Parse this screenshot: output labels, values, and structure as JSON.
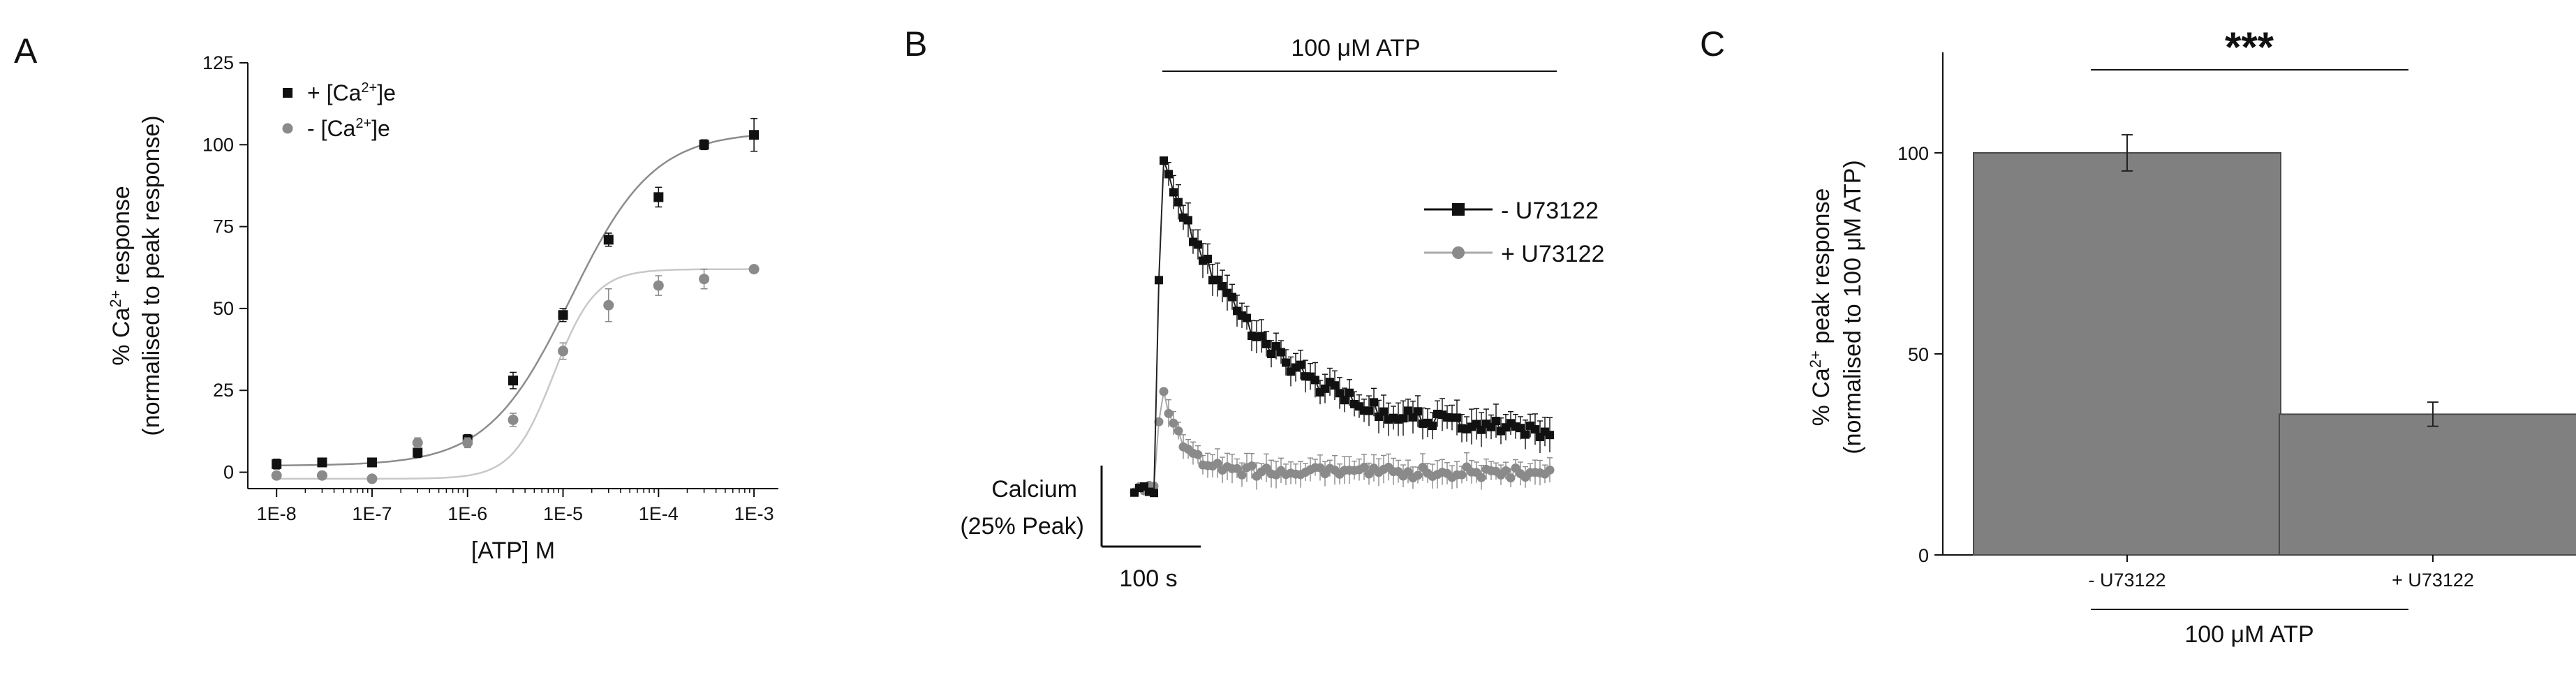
{
  "colors": {
    "black_series": "#111111",
    "grey_series": "#8a8a8a",
    "grey_fit": "#c8c8c8",
    "dark_fit": "#8c8c8c",
    "bar_fill": "#808080",
    "bar_stroke": "#4a4a4a"
  },
  "chart_data": [
    {
      "panel": "A",
      "type": "scatter",
      "xlabel": "[ATP] M",
      "ylabel": "% Ca2+ response (normalised to peak response)",
      "ylabel_line1_prefix": "% Ca",
      "ylabel_line1_sup": "2+",
      "ylabel_line1_suffix": " response",
      "ylabel_line2": "(normalised to peak response)",
      "x_scale": "log",
      "xlim": [
        5e-09,
        0.0018
      ],
      "ylim": [
        -5,
        125
      ],
      "xticks": [
        1e-08,
        1e-07,
        1e-06,
        1e-05,
        0.0001,
        0.001
      ],
      "xtick_labels": [
        "1E-8",
        "1E-7",
        "1E-6",
        "1E-5",
        "1E-4",
        "1E-3"
      ],
      "yticks": [
        0,
        25,
        50,
        75,
        100,
        125
      ],
      "ytick_labels": [
        "0",
        "25",
        "50",
        "75",
        "100",
        "125"
      ],
      "legend_position": "top-left",
      "series": [
        {
          "name": "+ [Ca2+]e",
          "legend_prefix": "+ [Ca",
          "legend_sup": "2+",
          "legend_suffix": "]e",
          "marker": "square",
          "x": [
            1e-08,
            3e-08,
            1e-07,
            3e-07,
            1e-06,
            3e-06,
            1e-05,
            3e-05,
            0.0001,
            0.0003,
            0.001
          ],
          "y": [
            2.5,
            3,
            3,
            6,
            10,
            28,
            48,
            71,
            84,
            100,
            103
          ],
          "err": [
            1.5,
            1.2,
            1,
            1.5,
            1.5,
            2.5,
            2,
            2,
            3,
            1.5,
            5
          ],
          "fit": {
            "bottom": 2,
            "top": 104,
            "ec50": 1.2e-05,
            "hill": 1.0
          }
        },
        {
          "name": "- [Ca2+]e",
          "legend_prefix": "- [Ca",
          "legend_sup": "2+",
          "legend_suffix": "]e",
          "marker": "circle",
          "x": [
            1e-08,
            3e-08,
            1e-07,
            3e-07,
            1e-06,
            3e-06,
            1e-05,
            3e-05,
            0.0001,
            0.0003,
            0.001
          ],
          "y": [
            -1,
            -1,
            -2,
            9,
            9,
            16,
            37,
            51,
            57,
            59,
            62
          ],
          "err": [
            1,
            1,
            1,
            1.5,
            1.5,
            2,
            2.5,
            5,
            3,
            3,
            1
          ],
          "fit": {
            "bottom": -2,
            "top": 62,
            "ec50": 8e-06,
            "hill": 2.0
          }
        }
      ]
    },
    {
      "panel": "B",
      "type": "line",
      "stimulus_label": "100 μM ATP",
      "scalebar_y_label_line1": "Calcium",
      "scalebar_y_label_line2": "(25% Peak)",
      "scalebar_x_label": "100 s",
      "scalebar_x_seconds": 100,
      "scalebar_y_percent": 25,
      "legend_position": "right",
      "series": [
        {
          "name": "- U73122",
          "marker": "square",
          "baseline": -3,
          "peak": 100,
          "plateau": 13,
          "tau_s": 95
        },
        {
          "name": "+ U73122",
          "marker": "circle",
          "baseline": -3,
          "peak": 30,
          "plateau": 2,
          "tau_s": 20
        }
      ]
    },
    {
      "panel": "C",
      "type": "bar",
      "categories": [
        "- U73122",
        "+ U73122"
      ],
      "values": [
        100,
        35
      ],
      "err": [
        4.5,
        3
      ],
      "ylabel": "% Ca2+ peak response (normalised to 100 μM ATP)",
      "ylabel_line1_prefix": "% Ca",
      "ylabel_line1_sup": "2+",
      "ylabel_line1_suffix": " peak response",
      "ylabel_line2": "(normalised to 100 μM ATP)",
      "xlabel": "100 μM ATP",
      "ylim": [
        0,
        125
      ],
      "yticks": [
        0,
        50,
        100
      ],
      "ytick_labels": [
        "0",
        "50",
        "100"
      ],
      "significance": "***"
    }
  ]
}
